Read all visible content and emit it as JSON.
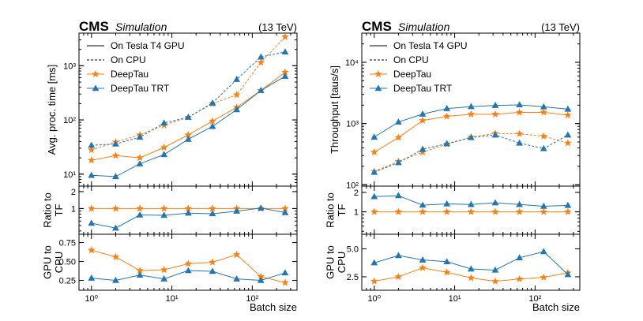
{
  "colors": {
    "deeptau": "#ff7f0e",
    "deeptau_trt": "#1f77b4",
    "axis": "#000000"
  },
  "chart_data": [
    {
      "type": "line",
      "panel": "left",
      "header": {
        "brand": "CMS",
        "tag": "Simulation",
        "energy": "(13 TeV)"
      },
      "xlabel": "Batch size",
      "x": [
        1,
        2,
        4,
        8,
        16,
        32,
        64,
        128,
        256
      ],
      "xlim": [
        0.7,
        360
      ],
      "xscale": "log",
      "legend": [
        {
          "label": "On Tesla T4 GPU",
          "style": "solid"
        },
        {
          "label": "On CPU",
          "style": "dashed"
        },
        {
          "label": "DeepTau",
          "marker": "star",
          "color": "deeptau"
        },
        {
          "label": "DeepTau TRT",
          "marker": "triangle",
          "color": "deeptau_trt"
        }
      ],
      "panels": [
        {
          "role": "main",
          "ylabel": "Avg. proc. time [ms]",
          "yscale": "log",
          "ylim": [
            6,
            4000
          ],
          "yticks": [
            {
              "value": 10,
              "label": "10¹"
            },
            {
              "value": 100,
              "label": "10²"
            },
            {
              "value": 1000,
              "label": "10³"
            }
          ],
          "series": [
            {
              "name": "DeepTau GPU",
              "model": "DeepTau",
              "device": "GPU",
              "values": [
                18,
                22,
                20,
                31,
                53,
                95,
                170,
                350,
                760
              ]
            },
            {
              "name": "DeepTau CPU",
              "model": "DeepTau",
              "device": "CPU",
              "values": [
                28,
                39,
                53,
                80,
                112,
                200,
                290,
                1150,
                3400
              ]
            },
            {
              "name": "DeepTau TRT GPU",
              "model": "DeepTau TRT",
              "device": "GPU",
              "values": [
                9.5,
                9,
                15.5,
                23,
                44,
                76,
                155,
                350,
                640
              ]
            },
            {
              "name": "DeepTau TRT CPU",
              "model": "DeepTau TRT",
              "device": "CPU",
              "values": [
                34,
                36,
                48,
                88,
                112,
                205,
                560,
                1450,
                1800
              ]
            }
          ]
        },
        {
          "role": "ratio",
          "ylabel": "Ratio to TF",
          "yscale": "log",
          "ylim": [
            0.35,
            2.5
          ],
          "yticks": [
            {
              "value": 1,
              "label": "1"
            },
            {
              "value": 2,
              "label": "2"
            }
          ],
          "series": [
            {
              "name": "DeepTau",
              "model": "DeepTau",
              "device": "GPU",
              "values": [
                1,
                1,
                1,
                1,
                1,
                1,
                1,
                1,
                1
              ]
            },
            {
              "name": "DeepTau TRT",
              "model": "DeepTau TRT",
              "device": "GPU",
              "values": [
                0.55,
                0.45,
                0.77,
                0.76,
                0.83,
                0.81,
                0.9,
                1.02,
                0.85
              ]
            }
          ]
        },
        {
          "role": "gpu_to_cpu",
          "ylabel": "GPU to CPU",
          "yscale": "linear",
          "ylim": [
            0.12,
            0.86
          ],
          "yticks": [
            {
              "value": 0.25,
              "label": "0.25"
            },
            {
              "value": 0.5,
              "label": "0.50"
            },
            {
              "value": 0.75,
              "label": "0.75"
            }
          ],
          "series": [
            {
              "name": "DeepTau",
              "model": "DeepTau",
              "device": "GPU",
              "values": [
                0.65,
                0.56,
                0.38,
                0.39,
                0.47,
                0.49,
                0.59,
                0.3,
                0.22
              ]
            },
            {
              "name": "DeepTau TRT",
              "model": "DeepTau TRT",
              "device": "GPU",
              "values": [
                0.28,
                0.25,
                0.32,
                0.27,
                0.38,
                0.37,
                0.27,
                0.25,
                0.35
              ]
            }
          ]
        }
      ]
    },
    {
      "type": "line",
      "panel": "right",
      "header": {
        "brand": "CMS",
        "tag": "Simulation",
        "energy": "(13 TeV)"
      },
      "xlabel": "Batch size",
      "x": [
        1,
        2,
        4,
        8,
        16,
        32,
        64,
        128,
        256
      ],
      "xlim": [
        0.7,
        360
      ],
      "xscale": "log",
      "legend": [
        {
          "label": "On Tesla T4 GPU",
          "style": "solid"
        },
        {
          "label": "On CPU",
          "style": "dashed"
        },
        {
          "label": "DeepTau",
          "marker": "star",
          "color": "deeptau"
        },
        {
          "label": "DeepTau TRT",
          "marker": "triangle",
          "color": "deeptau_trt"
        }
      ],
      "panels": [
        {
          "role": "main",
          "ylabel": "Throughput [taus/s]",
          "yscale": "log",
          "ylim": [
            95,
            30000
          ],
          "yticks": [
            {
              "value": 100,
              "label": "10²"
            },
            {
              "value": 1000,
              "label": "10³"
            },
            {
              "value": 10000,
              "label": "10⁴"
            }
          ],
          "series": [
            {
              "name": "DeepTau GPU",
              "model": "DeepTau",
              "device": "GPU",
              "values": [
                340,
                590,
                1120,
                1310,
                1420,
                1420,
                1520,
                1530,
                1370
              ]
            },
            {
              "name": "DeepTau CPU",
              "model": "DeepTau",
              "device": "CPU",
              "values": [
                165,
                240,
                340,
                460,
                600,
                690,
                680,
                620,
                480
              ]
            },
            {
              "name": "DeepTau TRT GPU",
              "model": "DeepTau TRT",
              "device": "GPU",
              "values": [
                600,
                1060,
                1430,
                1760,
                1890,
                1980,
                2020,
                1880,
                1720
              ]
            },
            {
              "name": "DeepTau TRT CPU",
              "model": "DeepTau TRT",
              "device": "CPU",
              "values": [
                160,
                230,
                380,
                470,
                590,
                650,
                480,
                390,
                650
              ]
            }
          ]
        },
        {
          "role": "ratio",
          "ylabel": "Ratio to TF",
          "yscale": "log",
          "ylim": [
            0.45,
            2.5
          ],
          "yticks": [
            {
              "value": 1,
              "label": "1"
            },
            {
              "value": 2,
              "label": "2"
            }
          ],
          "series": [
            {
              "name": "DeepTau",
              "model": "DeepTau",
              "device": "GPU",
              "values": [
                1,
                1,
                1,
                1,
                1,
                1,
                1,
                1,
                1
              ]
            },
            {
              "name": "DeepTau TRT",
              "model": "DeepTau TRT",
              "device": "GPU",
              "values": [
                1.72,
                1.78,
                1.27,
                1.33,
                1.3,
                1.38,
                1.3,
                1.22,
                1.26
              ]
            }
          ]
        },
        {
          "role": "gpu_to_cpu",
          "ylabel": "GPU to CPU",
          "yscale": "linear",
          "ylim": [
            1.3,
            6.3
          ],
          "yticks": [
            {
              "value": 2.5,
              "label": "2.5"
            },
            {
              "value": 5,
              "label": "5.0"
            }
          ],
          "series": [
            {
              "name": "DeepTau",
              "model": "DeepTau",
              "device": "GPU",
              "values": [
                2.1,
                2.5,
                3.3,
                2.9,
                2.4,
                2.1,
                2.3,
                2.45,
                2.85
              ]
            },
            {
              "name": "DeepTau TRT",
              "model": "DeepTau TRT",
              "device": "GPU",
              "values": [
                3.75,
                4.4,
                4.0,
                3.85,
                3.2,
                3.1,
                4.2,
                4.75,
                2.7
              ]
            }
          ]
        }
      ]
    }
  ]
}
